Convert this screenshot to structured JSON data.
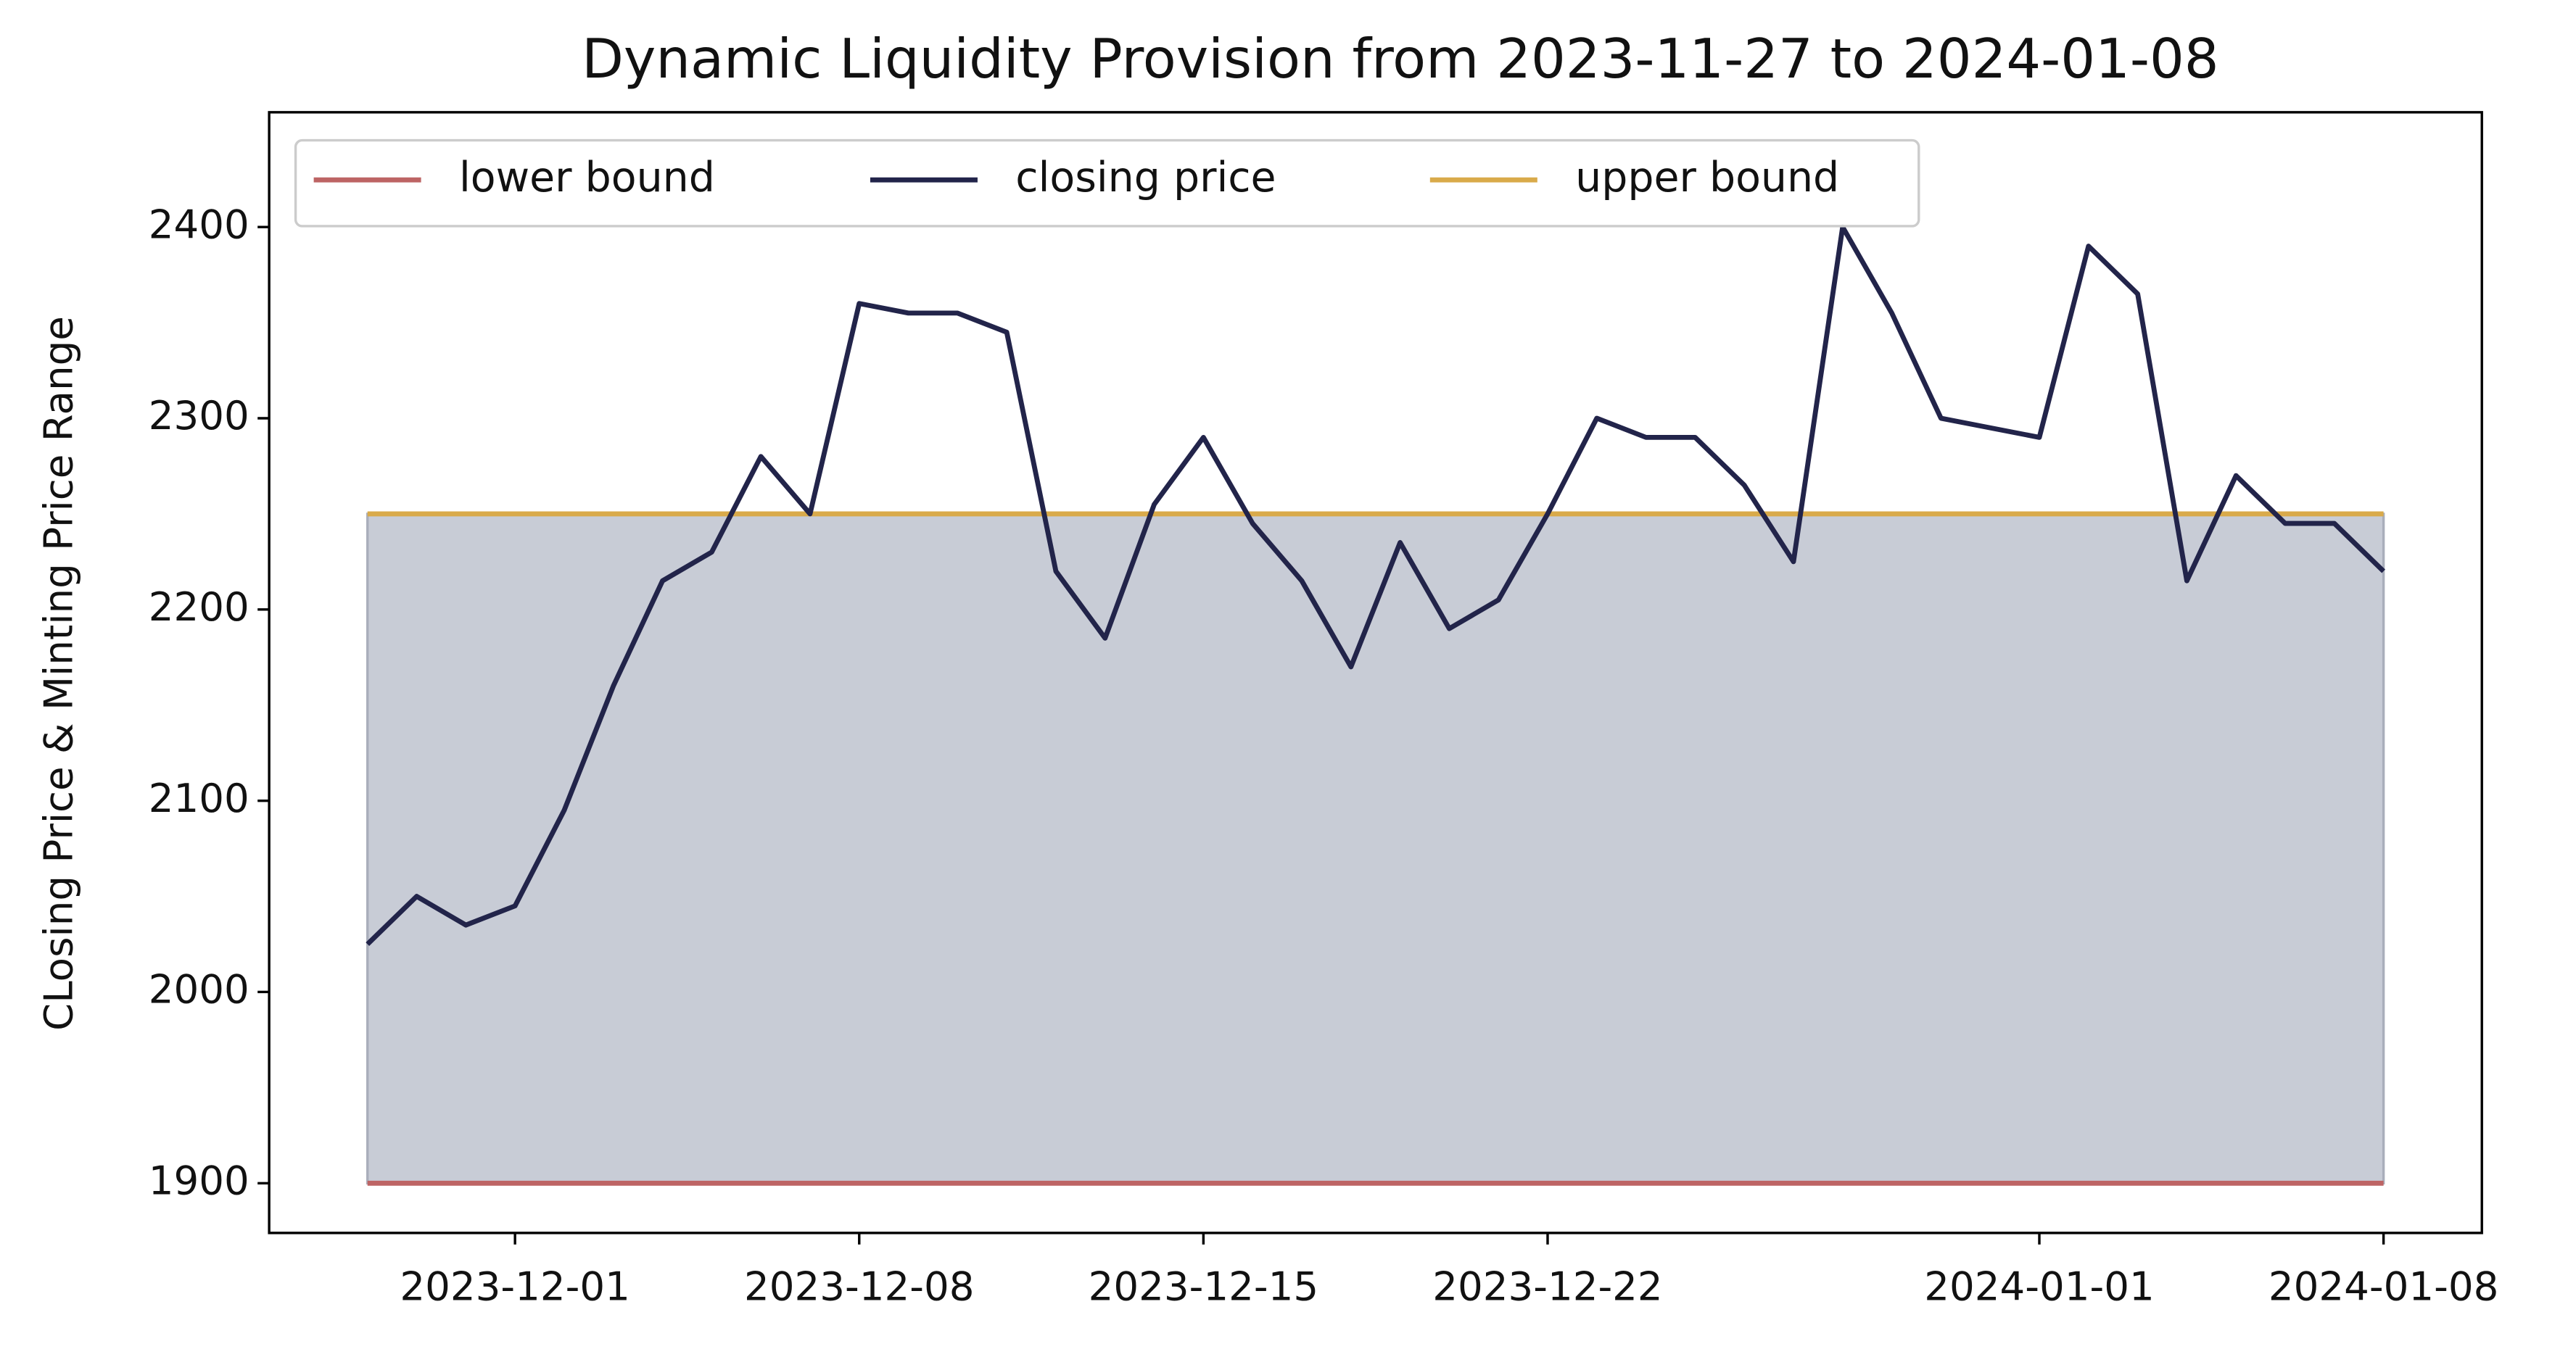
{
  "chart_data": {
    "type": "line",
    "title": "Dynamic Liquidity Provision from 2023-11-27 to 2024-01-08",
    "y_label": "CLosing Price & Minting Price Range",
    "x": [
      "2023-11-28",
      "2023-11-29",
      "2023-11-30",
      "2023-12-01",
      "2023-12-02",
      "2023-12-03",
      "2023-12-04",
      "2023-12-05",
      "2023-12-06",
      "2023-12-07",
      "2023-12-08",
      "2023-12-09",
      "2023-12-10",
      "2023-12-11",
      "2023-12-12",
      "2023-12-13",
      "2023-12-14",
      "2023-12-15",
      "2023-12-16",
      "2023-12-17",
      "2023-12-18",
      "2023-12-19",
      "2023-12-20",
      "2023-12-21",
      "2023-12-22",
      "2023-12-23",
      "2023-12-24",
      "2023-12-25",
      "2023-12-26",
      "2023-12-27",
      "2023-12-28",
      "2023-12-29",
      "2023-12-30",
      "2023-12-31",
      "2024-01-01",
      "2024-01-02",
      "2024-01-03",
      "2024-01-04",
      "2024-01-05",
      "2024-01-06",
      "2024-01-07",
      "2024-01-08"
    ],
    "series": [
      {
        "name": "lower bound",
        "color": "#bd6464",
        "values": [
          1900,
          1900,
          1900,
          1900,
          1900,
          1900,
          1900,
          1900,
          1900,
          1900,
          1900,
          1900,
          1900,
          1900,
          1900,
          1900,
          1900,
          1900,
          1900,
          1900,
          1900,
          1900,
          1900,
          1900,
          1900,
          1900,
          1900,
          1900,
          1900,
          1900,
          1900,
          1900,
          1900,
          1900,
          1900,
          1900,
          1900,
          1900,
          1900,
          1900,
          1900,
          1900
        ]
      },
      {
        "name": "closing price",
        "color": "#22244a",
        "values": [
          2025,
          2050,
          2035,
          2045,
          2095,
          2160,
          2215,
          2230,
          2280,
          2250,
          2360,
          2355,
          2355,
          2345,
          2220,
          2185,
          2255,
          2290,
          2245,
          2215,
          2170,
          2235,
          2190,
          2205,
          2250,
          2300,
          2290,
          2290,
          2265,
          2225,
          2400,
          2355,
          2300,
          2295,
          2290,
          2390,
          2365,
          2215,
          2270,
          2245,
          2245,
          2220
        ]
      },
      {
        "name": "upper bound",
        "color": "#d9aa4a",
        "values": [
          2250,
          2250,
          2250,
          2250,
          2250,
          2250,
          2250,
          2250,
          2250,
          2250,
          2250,
          2250,
          2250,
          2250,
          2250,
          2250,
          2250,
          2250,
          2250,
          2250,
          2250,
          2250,
          2250,
          2250,
          2250,
          2250,
          2250,
          2250,
          2250,
          2250,
          2250,
          2250,
          2250,
          2250,
          2250,
          2250,
          2250,
          2250,
          2250,
          2250,
          2250,
          2250
        ]
      }
    ],
    "fill_color": "#c8ccd6",
    "xlim": [
      "2023-11-26",
      "2024-01-10"
    ],
    "xticks": [
      "2023-12-01",
      "2023-12-08",
      "2023-12-15",
      "2023-12-22",
      "2024-01-01",
      "2024-01-08"
    ],
    "ylim": [
      1874,
      2460
    ],
    "yticks": [
      1900,
      2000,
      2100,
      2200,
      2300,
      2400
    ],
    "legend": "upper left"
  }
}
